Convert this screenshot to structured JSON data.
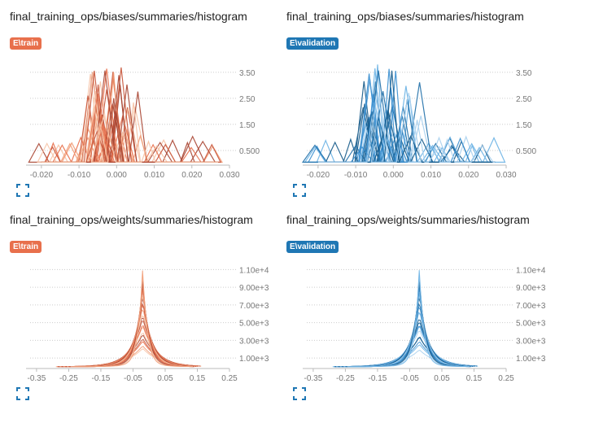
{
  "cards": [
    {
      "title": "final_training_ops/biases/summaries/histogram",
      "run": "E\\train",
      "tag_color": "#e8704c",
      "palette": [
        "#f6c3a6",
        "#f19b75",
        "#e8704c",
        "#c8553a",
        "#a84532"
      ],
      "chart_data": {
        "type": "histogram",
        "x_ticks": [
          "-0.020",
          "-0.010",
          "0.000",
          "0.010",
          "0.020",
          "0.030"
        ],
        "x_range": [
          -0.023,
          0.03
        ],
        "y_ticks": [
          "0.500",
          "1.50",
          "2.50",
          "3.50"
        ],
        "y_range": [
          0,
          3.9
        ],
        "grid": true
      }
    },
    {
      "title": "final_training_ops/biases/summaries/histogram",
      "run": "E\\validation",
      "tag_color": "#1f77b4",
      "palette": [
        "#a8d0ee",
        "#6cb2e4",
        "#3a8fd0",
        "#1f6fa8",
        "#155a8a"
      ],
      "chart_data": {
        "type": "histogram",
        "x_ticks": [
          "-0.020",
          "-0.010",
          "0.000",
          "0.010",
          "0.020",
          "0.030"
        ],
        "x_range": [
          -0.023,
          0.03
        ],
        "y_ticks": [
          "0.500",
          "1.50",
          "2.50",
          "3.50"
        ],
        "y_range": [
          0,
          3.9
        ],
        "grid": true
      }
    },
    {
      "title": "final_training_ops/weights/summaries/histogram",
      "run": "E\\train",
      "tag_color": "#e8704c",
      "palette": [
        "#f6c3a6",
        "#f19b75",
        "#e8704c",
        "#c8553a",
        "#a84532"
      ],
      "chart_data": {
        "type": "histogram",
        "x_ticks": [
          "-0.35",
          "-0.25",
          "-0.15",
          "-0.05",
          "0.05",
          "0.15",
          "0.25"
        ],
        "x_range": [
          -0.37,
          0.25
        ],
        "y_ticks": [
          "1.00e+3",
          "3.00e+3",
          "5.00e+3",
          "7.00e+3",
          "9.00e+3",
          "1.10e+4"
        ],
        "y_range": [
          0,
          11500
        ],
        "grid": true
      }
    },
    {
      "title": "final_training_ops/weights/summaries/histogram",
      "run": "E\\validation",
      "tag_color": "#1f77b4",
      "palette": [
        "#a8d0ee",
        "#6cb2e4",
        "#3a8fd0",
        "#1f6fa8",
        "#155a8a"
      ],
      "chart_data": {
        "type": "histogram",
        "x_ticks": [
          "-0.35",
          "-0.25",
          "-0.15",
          "-0.05",
          "0.05",
          "0.15",
          "0.25"
        ],
        "x_range": [
          -0.37,
          0.25
        ],
        "y_ticks": [
          "1.00e+3",
          "3.00e+3",
          "5.00e+3",
          "7.00e+3",
          "9.00e+3",
          "1.10e+4"
        ],
        "y_range": [
          0,
          11500
        ],
        "grid": true
      }
    }
  ],
  "icons": {
    "expand": "expand-icon"
  }
}
